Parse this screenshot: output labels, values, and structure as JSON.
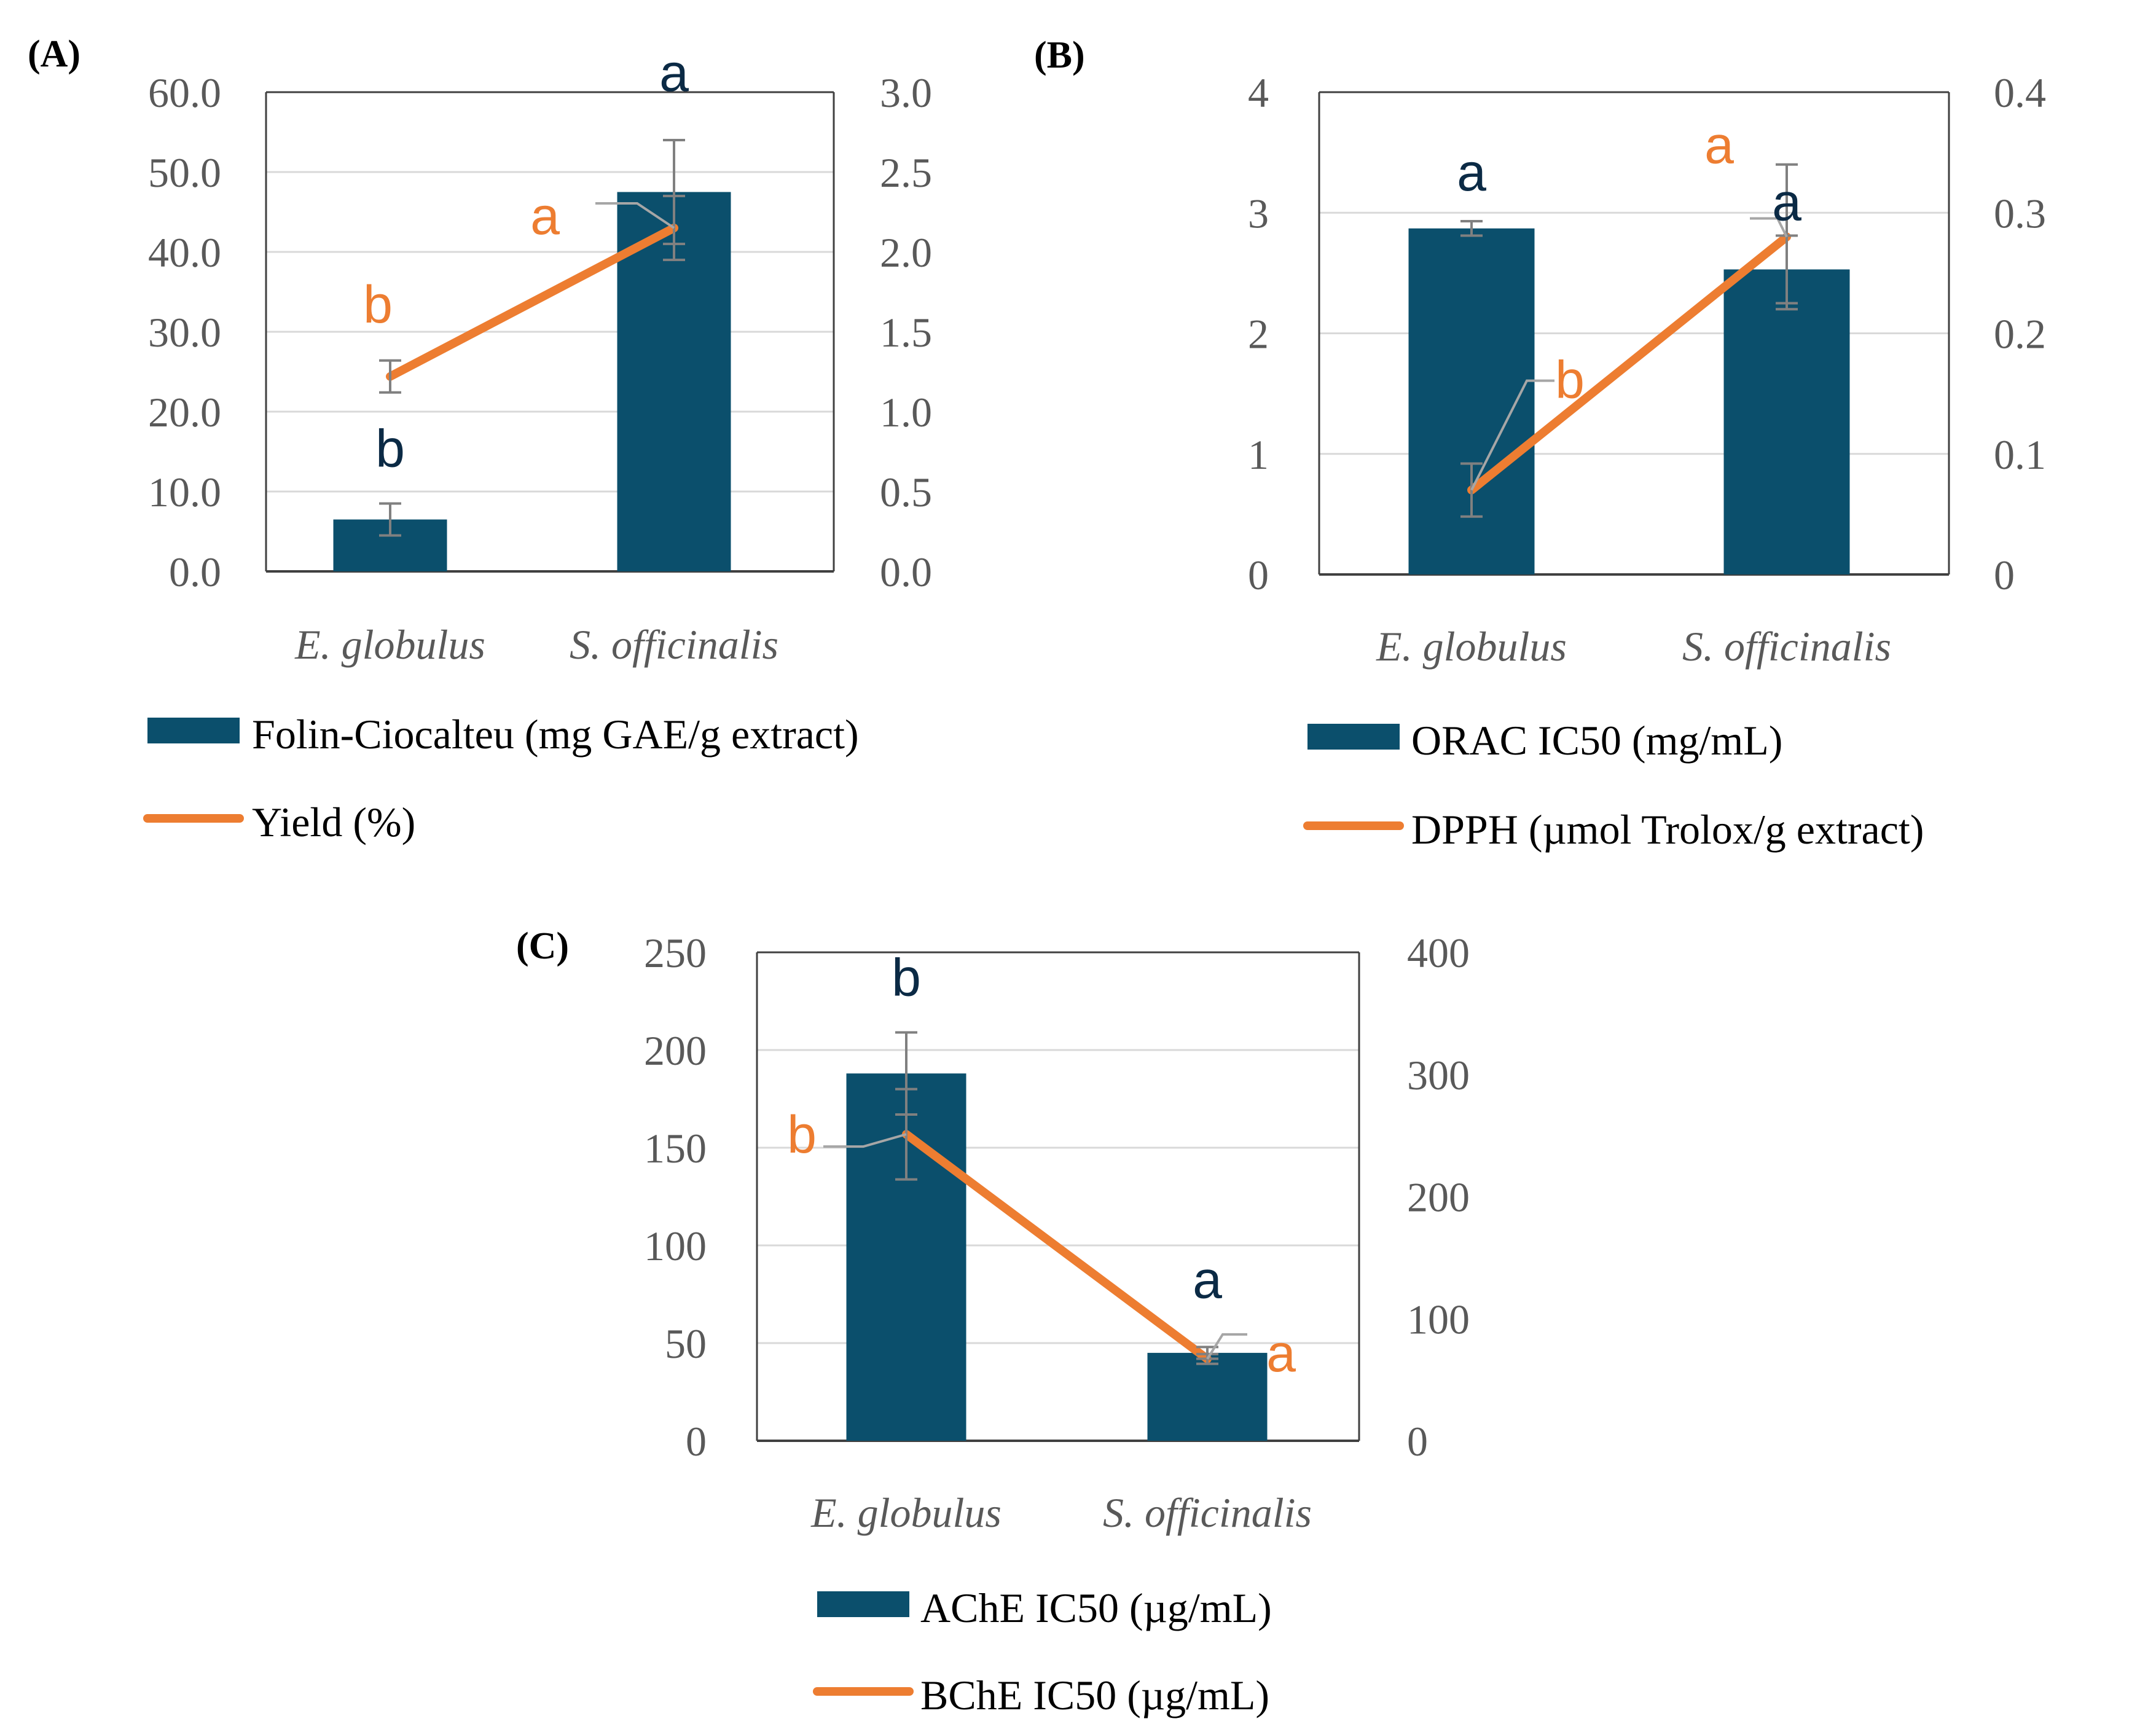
{
  "colors": {
    "bar": "#0b4f6c",
    "line": "#ed7d31",
    "bar_letter": "#0b2a45",
    "axis": "#404040",
    "grid": "#d9d9d9",
    "error": "#808080"
  },
  "chart_data": [
    {
      "panel": "(A)",
      "type": "bar",
      "categories": [
        "E. globulus",
        "S. officinalis"
      ],
      "series": [
        {
          "name": "Folin-Ciocalteu (mg GAE/g extract)",
          "kind": "bar",
          "axis": "left",
          "values": [
            6.5,
            47.5
          ],
          "errors": [
            2.0,
            6.5
          ],
          "letters": [
            "b",
            "a"
          ]
        },
        {
          "name": "Yield (%)",
          "kind": "line",
          "axis": "right",
          "values": [
            1.22,
            2.15
          ],
          "errors": [
            0.1,
            0.2
          ],
          "letters": [
            "b",
            "a"
          ]
        }
      ],
      "left_axis": {
        "min": 0,
        "max": 60,
        "ticks": [
          "0.0",
          "10.0",
          "20.0",
          "30.0",
          "40.0",
          "50.0",
          "60.0"
        ]
      },
      "right_axis": {
        "min": 0,
        "max": 3,
        "ticks": [
          "0.0",
          "0.5",
          "1.0",
          "1.5",
          "2.0",
          "2.5",
          "3.0"
        ]
      },
      "grid": true,
      "legend": "bottom"
    },
    {
      "panel": "(B)",
      "type": "bar",
      "categories": [
        "E. globulus",
        "S. officinalis"
      ],
      "series": [
        {
          "name": "ORAC IC50 (mg/mL)",
          "kind": "bar",
          "axis": "left",
          "values": [
            2.87,
            2.53
          ],
          "errors": [
            0.06,
            0.28
          ],
          "letters": [
            "a",
            "a"
          ]
        },
        {
          "name": "DPPH (µmol Trolox/g extract)",
          "kind": "line",
          "axis": "right",
          "values": [
            0.07,
            0.28
          ],
          "errors": [
            0.022,
            0.06
          ],
          "letters": [
            "b",
            "a"
          ]
        }
      ],
      "left_axis": {
        "min": 0,
        "max": 4,
        "ticks": [
          "0",
          "1",
          "2",
          "3",
          "4"
        ]
      },
      "right_axis": {
        "min": 0,
        "max": 0.4,
        "ticks": [
          "0",
          "0.1",
          "0.2",
          "0.3",
          "0.4"
        ]
      },
      "grid": true,
      "legend": "bottom"
    },
    {
      "panel": "(C)",
      "type": "bar",
      "categories": [
        "E. globulus",
        "S. officinalis"
      ],
      "series": [
        {
          "name": "AChE IC50 (µg/mL)",
          "kind": "bar",
          "axis": "left",
          "values": [
            188,
            45
          ],
          "errors": [
            21,
            3
          ],
          "letters": [
            "b",
            "a"
          ]
        },
        {
          "name": "BChE  IC50 (µg/mL)",
          "kind": "line",
          "axis": "right",
          "values": [
            251,
            67
          ],
          "errors": [
            37,
            4
          ],
          "letters": [
            "b",
            "a"
          ]
        }
      ],
      "left_axis": {
        "min": 0,
        "max": 250,
        "ticks": [
          "0",
          "50",
          "100",
          "150",
          "200",
          "250"
        ]
      },
      "right_axis": {
        "min": 0,
        "max": 400,
        "ticks": [
          "0",
          "100",
          "200",
          "300",
          "400"
        ]
      },
      "grid": true,
      "legend": "bottom"
    }
  ]
}
